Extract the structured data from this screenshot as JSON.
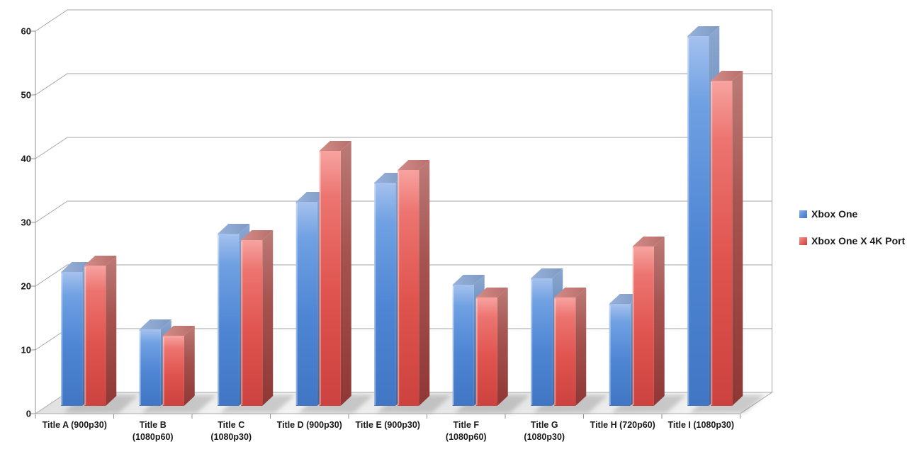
{
  "chart_data": {
    "type": "bar",
    "projection": "3d",
    "title": "",
    "xlabel": "",
    "ylabel": "",
    "categories": [
      "Title A (900p30)",
      "Title B\n(1080p60)",
      "Title C\n(1080p30)",
      "Title D (900p30)",
      "Title E (900p30)",
      "Title F\n(1080p60)",
      "Title G\n(1080p30)",
      "Title H (720p60)",
      "Title I (1080p30)"
    ],
    "series": [
      {
        "name": "Xbox One",
        "color": "#5B8ED6",
        "values": [
          21,
          12,
          27,
          32,
          35,
          19,
          20,
          16,
          58
        ]
      },
      {
        "name": "Xbox One X 4K Port",
        "color": "#E2615D",
        "values": [
          22,
          11,
          26,
          40,
          37,
          17,
          17,
          25,
          51
        ]
      }
    ],
    "ylim": [
      0,
      60
    ],
    "ytick_step": 10,
    "yticks": [
      0,
      10,
      20,
      30,
      40,
      50,
      60
    ],
    "grid": true,
    "legend_position": "right"
  },
  "colors": {
    "accent_blue": "#5B8ED6",
    "accent_red": "#E2615D",
    "gridline": "#A6A6A6",
    "axis": "#8F8F8F",
    "text": "#1A1A1A",
    "floor": "#EAEAEA",
    "background": "#FFFFFF"
  }
}
